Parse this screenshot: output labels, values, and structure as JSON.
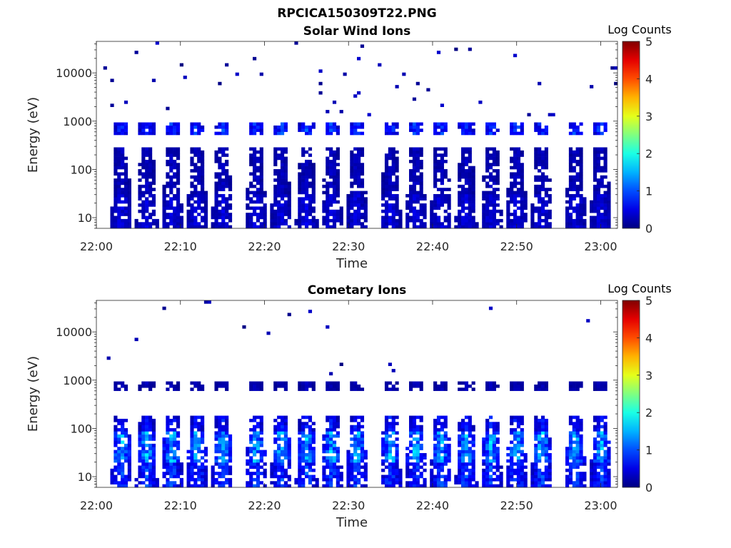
{
  "figure": {
    "title": "RPCICA150309T22.PNG"
  },
  "chart_data": [
    {
      "type": "heatmap",
      "title": "Solar Wind Ions",
      "xlabel": "Time",
      "ylabel": "Energy (eV)",
      "x_ticks": [
        "22:00",
        "22:10",
        "22:20",
        "22:30",
        "22:40",
        "22:50",
        "23:00"
      ],
      "xlim": [
        "22:00",
        "23:02"
      ],
      "yscale": "log",
      "y_ticks": [
        10,
        100,
        1000,
        10000
      ],
      "y_tick_labels": [
        "10",
        "100",
        "1000",
        "10000"
      ],
      "ylim": [
        6,
        45000
      ],
      "colorbar": {
        "label": "Log Counts",
        "range": [
          0,
          5
        ],
        "ticks": [
          "0",
          "1",
          "2",
          "3",
          "4",
          "5"
        ],
        "colormap": "jet"
      },
      "sweep_times": [
        "22:03",
        "22:06",
        "22:09",
        "22:12",
        "22:15",
        "22:19",
        "22:22",
        "22:25",
        "22:28",
        "22:31",
        "22:35",
        "22:38",
        "22:41",
        "22:44",
        "22:47",
        "22:50",
        "22:53",
        "22:57",
        "23:00"
      ],
      "bands": [
        {
          "e_min": 6,
          "e_max": 30,
          "level": 0.5
        },
        {
          "e_min": 30,
          "e_max": 280,
          "level": 0.35
        },
        {
          "e_min": 550,
          "e_max": 1000,
          "level": 1.0
        }
      ]
    },
    {
      "type": "heatmap",
      "title": "Cometary Ions",
      "xlabel": "Time",
      "ylabel": "Energy (eV)",
      "x_ticks": [
        "22:00",
        "22:10",
        "22:20",
        "22:30",
        "22:40",
        "22:50",
        "23:00"
      ],
      "xlim": [
        "22:00",
        "23:02"
      ],
      "yscale": "log",
      "y_ticks": [
        10,
        100,
        1000,
        10000
      ],
      "y_tick_labels": [
        "10",
        "100",
        "1000",
        "10000"
      ],
      "ylim": [
        6,
        45000
      ],
      "colorbar": {
        "label": "Log Counts",
        "range": [
          0,
          5
        ],
        "ticks": [
          "0",
          "1",
          "2",
          "3",
          "4",
          "5"
        ],
        "colormap": "jet"
      },
      "sweep_times": [
        "22:03",
        "22:06",
        "22:09",
        "22:12",
        "22:15",
        "22:19",
        "22:22",
        "22:25",
        "22:28",
        "22:31",
        "22:35",
        "22:38",
        "22:41",
        "22:44",
        "22:47",
        "22:50",
        "22:53",
        "22:57",
        "23:00"
      ],
      "bands": [
        {
          "e_min": 6,
          "e_max": 20,
          "level": 1.0
        },
        {
          "e_min": 20,
          "e_max": 90,
          "level": 1.6
        },
        {
          "e_min": 90,
          "e_max": 180,
          "level": 0.8
        },
        {
          "e_min": 600,
          "e_max": 1000,
          "level": 0.3
        }
      ]
    }
  ]
}
